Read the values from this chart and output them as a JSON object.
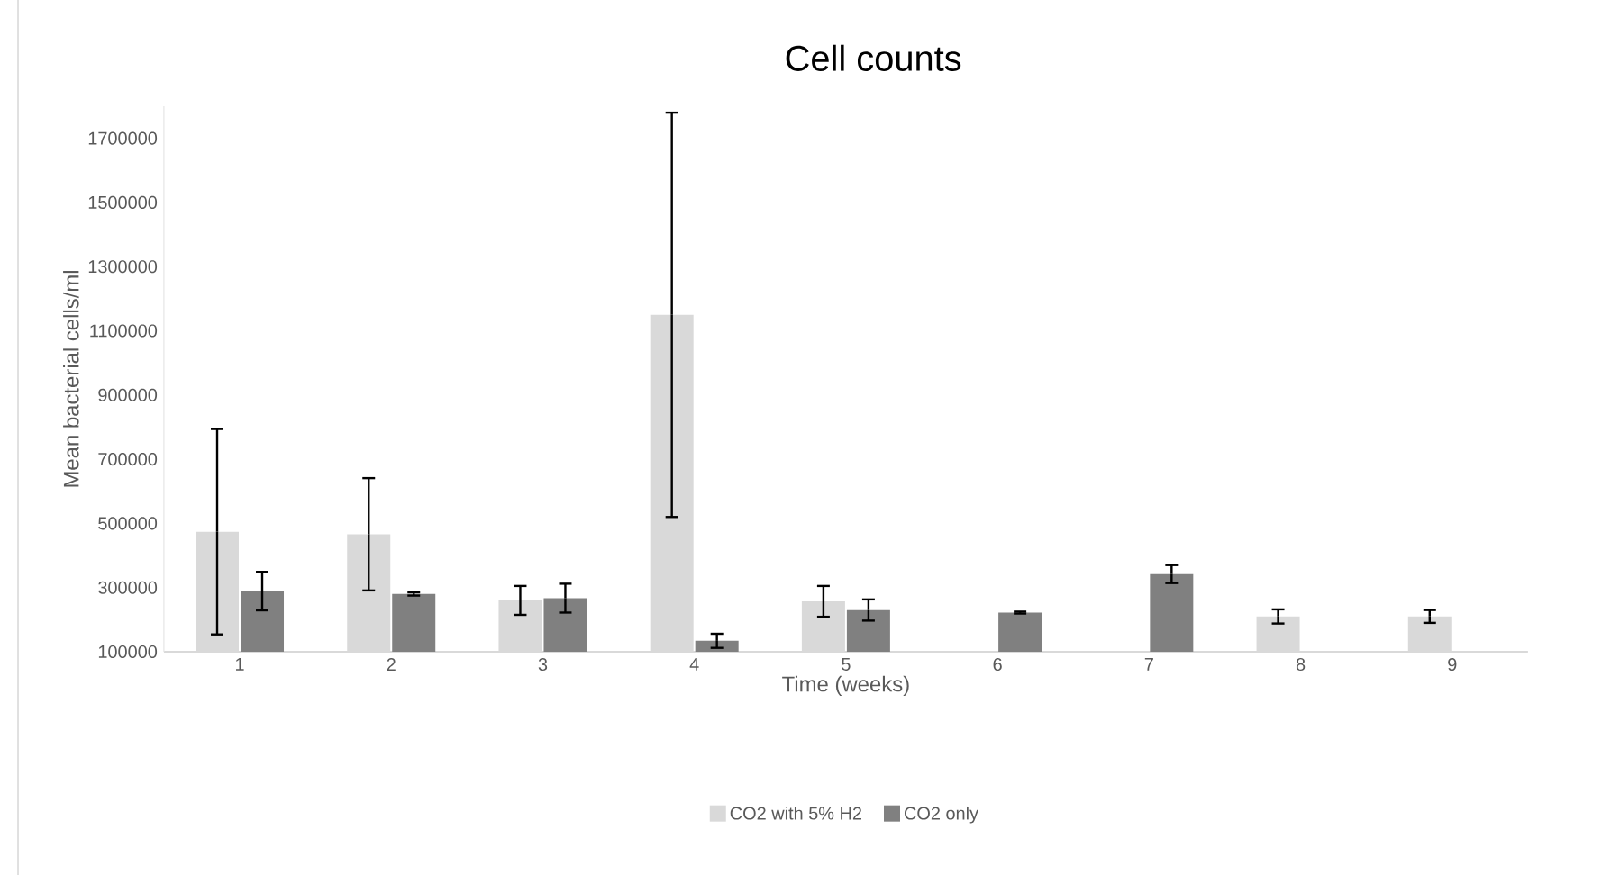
{
  "chart_data": {
    "type": "bar",
    "title": "Cell counts",
    "xlabel": "Time (weeks)",
    "ylabel": "Mean bacterial cells/ml",
    "categories": [
      "1",
      "2",
      "3",
      "4",
      "5",
      "6",
      "7",
      "8",
      "9"
    ],
    "series": [
      {
        "name": "CO2 with 5% H2",
        "color": "#d9d9d9",
        "values": [
          474000,
          466000,
          260000,
          1150000,
          257000,
          null,
          null,
          210000,
          210000
        ],
        "errors": [
          320000,
          175000,
          45000,
          630000,
          48000,
          null,
          null,
          22000,
          20000
        ]
      },
      {
        "name": "CO2 only",
        "color": "#808080",
        "values": [
          289000,
          280000,
          267000,
          134000,
          230000,
          222000,
          342000,
          null,
          null
        ],
        "errors": [
          60000,
          5000,
          45000,
          22000,
          33000,
          3000,
          28000,
          null,
          null
        ]
      }
    ],
    "ylim": [
      100000,
      1800000
    ],
    "yticks": [
      100000,
      300000,
      500000,
      700000,
      900000,
      1100000,
      1300000,
      1500000,
      1700000
    ],
    "legend": "bottom"
  }
}
